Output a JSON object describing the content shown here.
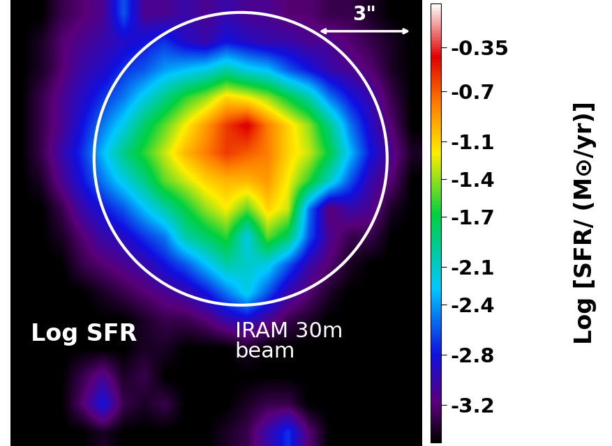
{
  "chart_data": {
    "type": "heatmap",
    "tick_labels": false,
    "annotations": [
      "Log SFR",
      "IRAM 30m\nbeam",
      "3\""
    ],
    "cells": [
      [
        -3.5,
        -3.5,
        -3.3,
        -3.2,
        -3.1,
        -2.6,
        -3.1,
        -3.1,
        -3.0,
        -3.1,
        -3.0,
        -3.1,
        -3.1,
        -3.2,
        -3.2,
        -3.3,
        -3.3,
        -3.4,
        -3.5,
        -3.5
      ],
      [
        -3.5,
        -3.4,
        -3.2,
        -3.1,
        -3.0,
        -2.9,
        -2.8,
        -2.7,
        -2.9,
        -3.0,
        -2.8,
        -2.9,
        -3.0,
        -3.0,
        -3.1,
        -3.1,
        -3.2,
        -3.3,
        -3.4,
        -3.5
      ],
      [
        -3.5,
        -3.4,
        -3.2,
        -3.0,
        -2.9,
        -2.7,
        -2.6,
        -2.4,
        -2.3,
        -2.2,
        -2.0,
        -2.2,
        -2.3,
        -2.6,
        -2.8,
        -3.0,
        -3.1,
        -3.2,
        -3.4,
        -3.5
      ],
      [
        -3.5,
        -3.3,
        -3.1,
        -2.9,
        -2.7,
        -2.5,
        -2.2,
        -1.9,
        -1.6,
        -1.4,
        -1.1,
        -1.2,
        -1.4,
        -1.7,
        -2.0,
        -2.5,
        -2.8,
        -3.0,
        -3.3,
        -3.5
      ],
      [
        -3.5,
        -3.3,
        -3.1,
        -2.8,
        -2.5,
        -2.2,
        -1.8,
        -1.5,
        -1.2,
        -0.9,
        -0.6,
        -0.4,
        -0.8,
        -1.1,
        -1.4,
        -1.9,
        -2.5,
        -2.9,
        -3.2,
        -3.5
      ],
      [
        -3.5,
        -3.3,
        -3.0,
        -2.7,
        -2.3,
        -1.9,
        -1.6,
        -1.3,
        -1.0,
        -0.8,
        -0.6,
        -0.7,
        -0.8,
        -1.1,
        -1.3,
        -1.7,
        -2.3,
        -2.8,
        -3.1,
        -3.4
      ],
      [
        -3.5,
        -3.4,
        -3.1,
        -2.8,
        -2.5,
        -2.2,
        -1.9,
        -1.5,
        -1.3,
        -1.1,
        -1.0,
        -1.0,
        -0.9,
        -1.2,
        -1.6,
        -2.1,
        -2.6,
        -3.0,
        -3.2,
        -3.5
      ],
      [
        -3.5,
        -3.5,
        -3.3,
        -3.0,
        -2.8,
        -2.6,
        -2.3,
        -2.0,
        -1.7,
        -1.4,
        -1.2,
        -1.5,
        -1.1,
        -1.3,
        -2.5,
        -3.2,
        -3.0,
        -3.1,
        -3.4,
        -3.5
      ],
      [
        -3.5,
        -3.5,
        -3.4,
        -3.2,
        -3.0,
        -2.9,
        -2.7,
        -2.5,
        -2.0,
        -1.8,
        -1.6,
        -2.2,
        -1.5,
        -1.8,
        -2.6,
        -3.1,
        -3.3,
        -3.3,
        -3.5,
        -3.5
      ],
      [
        -3.5,
        -3.5,
        -3.5,
        -3.3,
        -3.2,
        -3.1,
        -3.0,
        -2.8,
        -2.6,
        -2.3,
        -2.0,
        -2.1,
        -2.2,
        -2.6,
        -3.0,
        -3.2,
        -3.4,
        -3.5,
        -3.5,
        -3.5
      ],
      [
        -3.5,
        -3.5,
        -3.5,
        -3.5,
        -3.4,
        -3.3,
        -3.2,
        -3.1,
        -3.0,
        -2.8,
        -2.5,
        -2.2,
        -2.6,
        -3.0,
        -3.2,
        -3.4,
        -3.5,
        -3.5,
        -3.5,
        -3.5
      ],
      [
        -3.5,
        -3.5,
        -3.5,
        -3.5,
        -3.5,
        -3.5,
        -3.4,
        -3.3,
        -3.3,
        -3.2,
        -3.0,
        -2.9,
        -3.1,
        -3.3,
        -3.4,
        -3.5,
        -3.5,
        -3.5,
        -3.5,
        -3.5
      ],
      [
        -3.5,
        -3.5,
        -3.5,
        -3.5,
        -3.5,
        -3.5,
        -3.4,
        -3.4,
        -3.5,
        -3.5,
        -3.5,
        -3.4,
        -3.5,
        -3.5,
        -3.5,
        -3.5,
        -3.5,
        -3.5,
        -3.5,
        -3.5
      ],
      [
        -3.5,
        -3.5,
        -3.5,
        -3.3,
        -3.1,
        -3.4,
        -3.3,
        -3.5,
        -3.5,
        -3.5,
        -3.5,
        -3.5,
        -3.5,
        -3.5,
        -3.5,
        -3.5,
        -3.5,
        -3.5,
        -3.5,
        -3.5
      ],
      [
        -3.5,
        -3.5,
        -3.5,
        -3.2,
        -2.8,
        -3.3,
        -3.4,
        -3.3,
        -3.5,
        -3.5,
        -3.5,
        -3.4,
        -3.3,
        -3.3,
        -3.5,
        -3.5,
        -3.5,
        -3.5,
        -3.5,
        -3.5
      ],
      [
        -3.5,
        -3.5,
        -3.5,
        -3.5,
        -3.4,
        -3.5,
        -3.5,
        -3.5,
        -3.5,
        -3.5,
        -3.4,
        -3.3,
        -3.0,
        -2.7,
        -3.2,
        -3.5,
        -3.5,
        -3.5,
        -3.5,
        -3.5
      ]
    ],
    "colorbar": {
      "label": "Log [SFR/ (M⊙/yr)]",
      "range": [
        -3.5,
        0
      ],
      "ticks": [
        -0.35,
        -0.7,
        -1.1,
        -1.4,
        -1.7,
        -2.1,
        -2.4,
        -2.8,
        -3.2
      ]
    }
  }
}
